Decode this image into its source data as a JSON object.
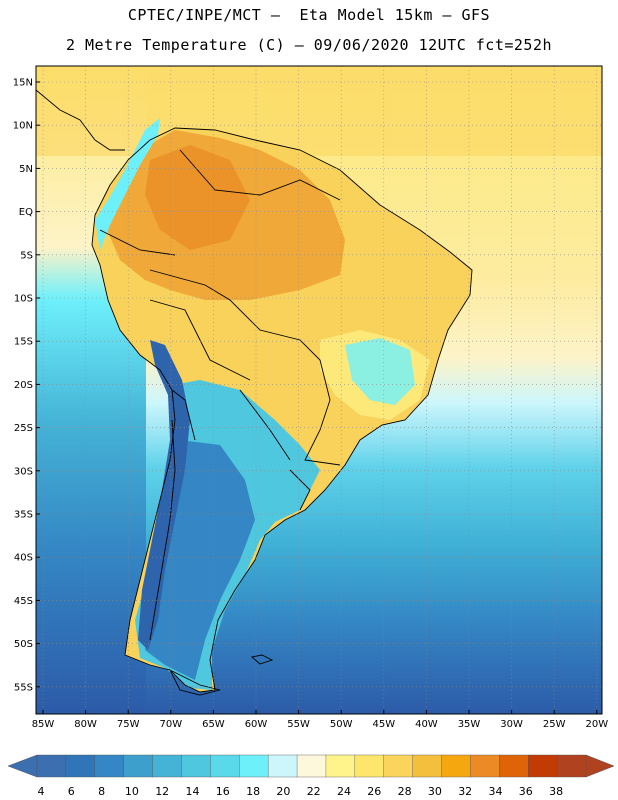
{
  "header": {
    "title_line1": "CPTEC/INPE/MCT –  Eta Model 15km – GFS",
    "title_line2": "2 Metre Temperature (C) – 09/06/2020 12UTC fct=252h"
  },
  "map": {
    "region": "South America",
    "lat_labels": [
      "15N",
      "10N",
      "5N",
      "EQ",
      "5S",
      "10S",
      "15S",
      "20S",
      "25S",
      "30S",
      "35S",
      "40S",
      "45S",
      "50S",
      "55S"
    ],
    "lon_labels": [
      "85W",
      "80W",
      "75W",
      "70W",
      "65W",
      "60W",
      "55W",
      "50W",
      "45W",
      "40W",
      "35W",
      "30W",
      "25W",
      "20W"
    ]
  },
  "colorbar": {
    "labels": [
      "4",
      "6",
      "8",
      "10",
      "12",
      "14",
      "16",
      "18",
      "20",
      "22",
      "24",
      "26",
      "28",
      "30",
      "32",
      "34",
      "36",
      "38"
    ],
    "colors": [
      "#3b6fb0",
      "#2f75b8",
      "#3486c4",
      "#3d9fcc",
      "#45b3d6",
      "#4fc7de",
      "#59d9ea",
      "#6ef0fb",
      "#ccf6fc",
      "#fdf7dc",
      "#fff38b",
      "#fee66c",
      "#fad45c",
      "#f3bf3c",
      "#f4a70f",
      "#ec8a25",
      "#df6407",
      "#c23a04",
      "#b0421f"
    ],
    "low_color": "#3b6fb0",
    "high_color": "#b0421f"
  },
  "colors": {
    "ocean_deep": "#2c5ba8",
    "ocean_mid": "#3ea7d0",
    "ocean_light": "#5fd2ea",
    "andes_cold": "#2e64ac",
    "land_hot": "#f0a838",
    "land_warm": "#f8d25a",
    "land_mild": "#fde97a",
    "border": "#000000"
  }
}
